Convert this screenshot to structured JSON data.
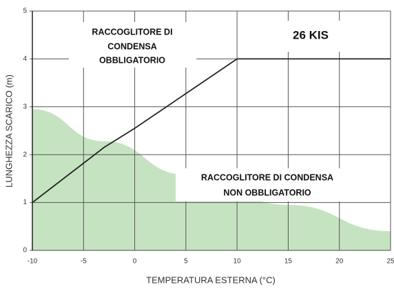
{
  "chart_data": {
    "type": "line",
    "x_label": "TEMPERATURA ESTERNA (°C)",
    "y_label": "LUNGHEZZA SCARICO (m)",
    "xlim": [
      -10,
      25
    ],
    "ylim": [
      0,
      5
    ],
    "xticks": [
      -10,
      -5,
      0,
      5,
      10,
      15,
      20,
      25
    ],
    "yticks": [
      0,
      1,
      2,
      3,
      4,
      5
    ],
    "grid": true,
    "series": [
      {
        "color": "#222222",
        "x": [
          -10,
          -3,
          0,
          10,
          25
        ],
        "values": [
          1,
          2.15,
          2.55,
          4,
          4
        ]
      }
    ],
    "area": {
      "color": "#c6e3c1",
      "x": [
        -10,
        -3,
        5,
        15,
        25
      ],
      "values": [
        2.95,
        2.28,
        1.58,
        0.95,
        0.4
      ]
    },
    "annotations": [
      {
        "lines": [
          "RACCOGLITORE DI",
          "CONDENSA",
          "OBBLIGATORIO"
        ]
      },
      {
        "lines": [
          "26 KIS"
        ]
      },
      {
        "lines": [
          "RACCOGLITORE DI CONDENSA",
          "NON OBBLIGATORIO"
        ]
      }
    ]
  }
}
